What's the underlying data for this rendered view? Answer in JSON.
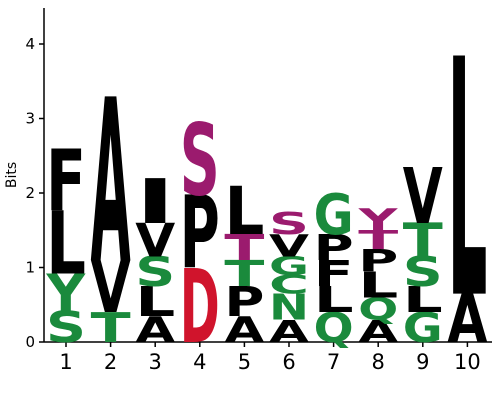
{
  "chart_data": {
    "type": "sequence-logo",
    "ylabel": "Bits",
    "ylim": [
      0,
      4.5
    ],
    "yticks": [
      "0",
      "1",
      "2",
      "3",
      "4"
    ],
    "xlabel": "",
    "colors": {
      "hydrophobic": "#000000",
      "polar": "#1a8a3c",
      "small": "#9b1b6e",
      "acidic": "#d0142c"
    },
    "positions": [
      {
        "label": "1",
        "stack": [
          {
            "letter": "S",
            "bits": 0.42,
            "group": "polar"
          },
          {
            "letter": "Y",
            "bits": 0.5,
            "group": "polar"
          },
          {
            "letter": "L",
            "bits": 0.85,
            "group": "hydrophobic"
          },
          {
            "letter": "F",
            "bits": 0.83,
            "group": "hydrophobic"
          }
        ]
      },
      {
        "label": "2",
        "stack": [
          {
            "letter": "T",
            "bits": 0.4,
            "group": "polar"
          },
          {
            "letter": "V",
            "bits": 0.7,
            "group": "hydrophobic"
          },
          {
            "letter": "A",
            "bits": 2.2,
            "group": "hydrophobic"
          }
        ]
      },
      {
        "label": "3",
        "stack": [
          {
            "letter": "A",
            "bits": 0.35,
            "group": "hydrophobic"
          },
          {
            "letter": "L",
            "bits": 0.4,
            "group": "hydrophobic"
          },
          {
            "letter": "S",
            "bits": 0.4,
            "group": "polar"
          },
          {
            "letter": "V",
            "bits": 0.45,
            "group": "hydrophobic"
          },
          {
            "letter": "I",
            "bits": 0.6,
            "group": "hydrophobic"
          }
        ]
      },
      {
        "label": "4",
        "stack": [
          {
            "letter": "D",
            "bits": 1.0,
            "group": "acidic"
          },
          {
            "letter": "P",
            "bits": 0.98,
            "group": "hydrophobic"
          },
          {
            "letter": "S",
            "bits": 0.97,
            "group": "small"
          }
        ]
      },
      {
        "label": "5",
        "stack": [
          {
            "letter": "A",
            "bits": 0.35,
            "group": "hydrophobic"
          },
          {
            "letter": "P",
            "bits": 0.4,
            "group": "hydrophobic"
          },
          {
            "letter": "T",
            "bits": 0.35,
            "group": "polar"
          },
          {
            "letter": "T",
            "bits": 0.35,
            "group": "small"
          },
          {
            "letter": "L",
            "bits": 0.65,
            "group": "hydrophobic"
          }
        ]
      },
      {
        "label": "6",
        "stack": [
          {
            "letter": "A",
            "bits": 0.3,
            "group": "hydrophobic"
          },
          {
            "letter": "N",
            "bits": 0.35,
            "group": "polar"
          },
          {
            "letter": "C",
            "bits": 0.25,
            "group": "polar"
          },
          {
            "letter": "G",
            "bits": 0.25,
            "group": "polar"
          },
          {
            "letter": "V",
            "bits": 0.3,
            "group": "hydrophobic"
          },
          {
            "letter": "S",
            "bits": 0.3,
            "group": "small"
          }
        ]
      },
      {
        "label": "7",
        "stack": [
          {
            "letter": "Q",
            "bits": 0.4,
            "group": "polar"
          },
          {
            "letter": "L",
            "bits": 0.35,
            "group": "hydrophobic"
          },
          {
            "letter": "F",
            "bits": 0.35,
            "group": "hydrophobic"
          },
          {
            "letter": "P",
            "bits": 0.35,
            "group": "hydrophobic"
          },
          {
            "letter": "G",
            "bits": 0.55,
            "group": "polar"
          }
        ]
      },
      {
        "label": "8",
        "stack": [
          {
            "letter": "A",
            "bits": 0.3,
            "group": "hydrophobic"
          },
          {
            "letter": "Q",
            "bits": 0.3,
            "group": "polar"
          },
          {
            "letter": "L",
            "bits": 0.35,
            "group": "hydrophobic"
          },
          {
            "letter": "P",
            "bits": 0.3,
            "group": "hydrophobic"
          },
          {
            "letter": "T",
            "bits": 0.25,
            "group": "small"
          },
          {
            "letter": "Y",
            "bits": 0.3,
            "group": "small"
          }
        ]
      },
      {
        "label": "9",
        "stack": [
          {
            "letter": "G",
            "bits": 0.4,
            "group": "polar"
          },
          {
            "letter": "L",
            "bits": 0.35,
            "group": "hydrophobic"
          },
          {
            "letter": "S",
            "bits": 0.4,
            "group": "polar"
          },
          {
            "letter": "T",
            "bits": 0.45,
            "group": "polar"
          },
          {
            "letter": "V",
            "bits": 0.75,
            "group": "hydrophobic"
          }
        ]
      },
      {
        "label": "10",
        "stack": [
          {
            "letter": "A",
            "bits": 0.65,
            "group": "hydrophobic"
          },
          {
            "letter": "L",
            "bits": 3.2,
            "group": "hydrophobic"
          }
        ]
      }
    ]
  }
}
